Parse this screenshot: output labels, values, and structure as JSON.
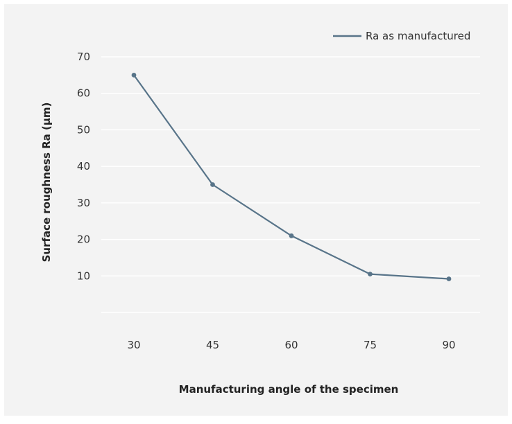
{
  "chart_data": {
    "type": "line",
    "xlabel": "Manufacturing angle of the specimen",
    "ylabel": "Surface roughness Ra (µm)",
    "categories": [
      "30",
      "45",
      "60",
      "75",
      "90"
    ],
    "x": [
      30,
      45,
      60,
      75,
      90
    ],
    "series": [
      {
        "name": "Ra as manufactured",
        "values": [
          65,
          35,
          21,
          10.5,
          9.2
        ]
      }
    ],
    "ylim": [
      0,
      70
    ],
    "yticks": [
      10,
      20,
      30,
      40,
      50,
      60,
      70
    ],
    "grid": true,
    "legend": "top-right",
    "colors": {
      "series": "#587489",
      "grid": "#ffffff",
      "background": "#f3f3f3"
    }
  }
}
